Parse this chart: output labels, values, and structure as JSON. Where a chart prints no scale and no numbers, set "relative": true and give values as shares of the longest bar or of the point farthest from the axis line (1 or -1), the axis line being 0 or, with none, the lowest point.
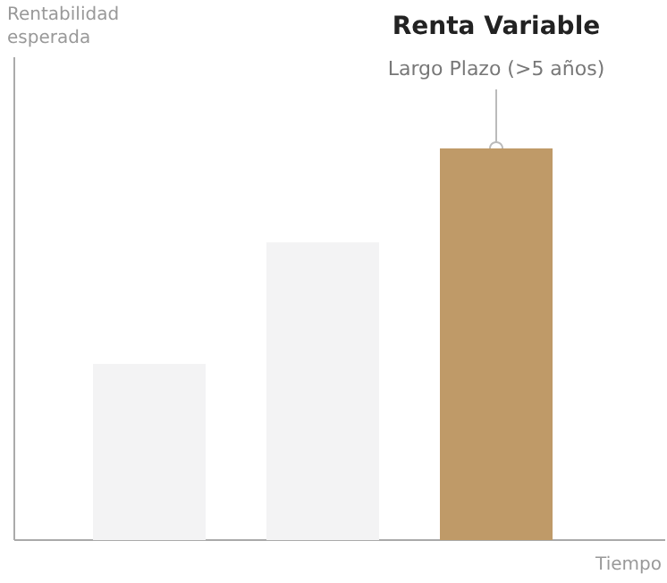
{
  "chart_data": {
    "type": "bar",
    "relative": true,
    "categories": [
      null,
      null,
      null
    ],
    "values": [
      0.45,
      0.76,
      1
    ],
    "colors": [
      "#f3f3f4",
      "#f3f3f4",
      "#bf9a68"
    ],
    "xlabel": "Tiempo",
    "annotations": [
      "Rentabilidad esperada",
      "Renta Variable",
      {
        "text": "Largo Plazo (>5 años)",
        "y": 1
      }
    ]
  }
}
